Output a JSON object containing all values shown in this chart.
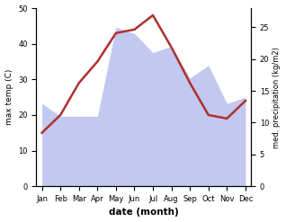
{
  "months": [
    "Jan",
    "Feb",
    "Mar",
    "Apr",
    "May",
    "Jun",
    "Jul",
    "Aug",
    "Sep",
    "Oct",
    "Nov",
    "Dec"
  ],
  "temp": [
    15,
    20,
    29,
    35,
    43,
    44,
    48,
    39,
    29,
    20,
    19,
    24
  ],
  "precip": [
    13,
    11,
    11,
    11,
    25,
    24,
    21,
    22,
    17,
    19,
    13,
    14
  ],
  "temp_color": "#b03030",
  "precip_fill_color": "#b8bfee",
  "temp_ylim": [
    0,
    50
  ],
  "precip_ylim": [
    0,
    28
  ],
  "precip_yticks": [
    0,
    5,
    10,
    15,
    20,
    25
  ],
  "temp_yticks": [
    0,
    10,
    20,
    30,
    40,
    50
  ],
  "xlabel": "date (month)",
  "ylabel_left": "max temp (C)",
  "ylabel_right": "med. precipitation (kg/m2)",
  "background_color": "#ffffff"
}
